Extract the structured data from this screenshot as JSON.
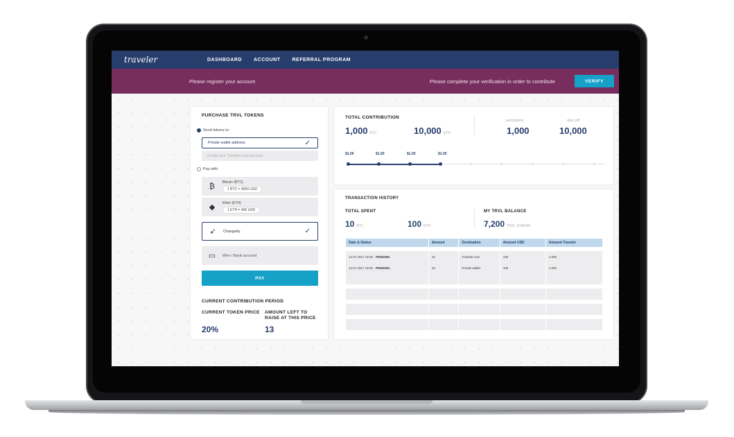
{
  "nav": {
    "logo": "traveler",
    "items": [
      "DASHBOARD",
      "ACCOUNT",
      "REFERRAL PROGRAM"
    ]
  },
  "banner": {
    "register_text": "Please register your account",
    "verify_text": "Please complete your verification in order to contribute",
    "verify_button": "VERIFY"
  },
  "purchase": {
    "title": "PURCHASE TRVL TOKENS",
    "send_label": "Send tokens to:",
    "wallet_option": "Private wallet address",
    "credit_option": "Credit your Traveler.com account",
    "pay_label": "Pay with:",
    "methods": [
      {
        "name": "Bitcoin (BTC)",
        "rate": "1 BTC = 4000 USD",
        "icon": "bitcoin-icon"
      },
      {
        "name": "Ether (ETH)",
        "rate": "1 ETH = 400 USD",
        "icon": "ethereum-icon"
      },
      {
        "name": "Changelly",
        "icon": "rocket-icon"
      },
      {
        "name": "Wire / Bank account",
        "icon": "bank-card-icon"
      }
    ],
    "pay_button": "PAY"
  },
  "period": {
    "title": "CURRENT CONTRIBUTION PERIOD",
    "token_price_label": "CURRENT TOKEN PRICE",
    "amount_left_label": "AMOUNT LEFT TO RAISE AT THIS PRICE",
    "token_price_value": "20%",
    "amount_left_value": "13"
  },
  "contribution": {
    "title": "TOTAL CONTRIBUTION",
    "btc_value": "1,000",
    "btc_unit": "BTC",
    "eth_value": "10,000",
    "eth_unit": "ETH",
    "participants_label": "participants",
    "participants_value": "1,000",
    "days_left_label": "days left",
    "days_left_value": "10,000",
    "timeline_labels": [
      "$1.00",
      "$1.00",
      "$1.00",
      "$1.00"
    ]
  },
  "history": {
    "title": "TRANSACTION HISTORY",
    "spent_label": "TOTAL SPENT",
    "spent_btc": "10",
    "spent_btc_unit": "BTC",
    "spent_eth": "100",
    "spent_eth_unit": "ETH",
    "balance_label": "MY TRVL BALANCE",
    "balance_value": "7,200",
    "balance_unit": "TRVL TOKENS",
    "columns": [
      "Date & Status",
      "Amount",
      "Destination",
      "Amount USD",
      "Amount Traveler"
    ],
    "rows": [
      {
        "date": "14.07.2017 18:30",
        "status": "PENDING",
        "amount": "10",
        "destination": "Traveler.com",
        "usd": "100",
        "traveler": "1.000"
      },
      {
        "date": "14.07.2017 18:30",
        "status": "PENDING",
        "amount": "10",
        "destination": "Private wallet",
        "usd": "100",
        "traveler": "1.000"
      }
    ]
  },
  "colors": {
    "nav": "#273d6c",
    "banner": "#772d5d",
    "accent": "#16a2c8"
  }
}
